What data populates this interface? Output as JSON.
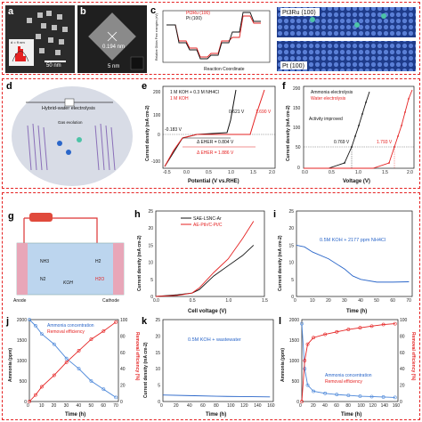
{
  "panels": {
    "a": {
      "letter": "a",
      "scale": "50 nm",
      "inset_d": "d = 9 nm"
    },
    "b": {
      "letter": "b",
      "scale": "5 nm",
      "spacing": "0.194 nm"
    },
    "c": {
      "letter": "c",
      "legend": [
        "Pt3Ru (100)",
        "Pt (100)"
      ],
      "ylabel": "Relative Gibbs Free energies (eV)",
      "xlabel": "Reaction Coordinate",
      "structures": [
        "Pt3Ru (100)",
        "Pt (100)"
      ]
    },
    "d": {
      "letter": "d",
      "title": "Hybrid-water electrolysis",
      "label_gas": "Gas evolution"
    },
    "e": {
      "letter": "e",
      "legend": [
        "1 M KOH + 0.3 M NH4Cl",
        "1 M KOH"
      ],
      "ann": [
        "0.621 V",
        "-0.183 V",
        "1.690 V",
        "Δ EHER = 0.804 V",
        "Δ EHER = 1.886 V"
      ],
      "xlabel": "Potential (V vs.RHE)",
      "ylabel": "Current density (mA cm-2)"
    },
    "f": {
      "letter": "f",
      "legend": [
        "Ammonia electrolysis",
        "Water electrolysis"
      ],
      "ann": [
        "Activity improved",
        "0.769 V",
        "1.793 V"
      ],
      "xlabel": "Voltage (V)",
      "ylabel": "Current density (mA cm-2)"
    },
    "g": {
      "letter": "g",
      "labels": [
        "NH3",
        "H2",
        "N2",
        "H2O",
        "KOH",
        "Anode",
        "Cathode"
      ]
    },
    "h": {
      "letter": "h",
      "legend": [
        "SAE-LSNC-Ar",
        "AE-PtIr/C-Pt/C"
      ],
      "xlabel": "Cell voltage (V)",
      "ylabel": "Current density (mA cm-2)"
    },
    "i": {
      "letter": "i",
      "note": "0.5M KOH + 2177 ppm NH4Cl",
      "xlabel": "Time (h)",
      "ylabel": "Current density (mA cm-2)"
    },
    "j": {
      "letter": "j",
      "legend": [
        "Ammonia concentration",
        "Removal efficiency"
      ],
      "xlabel": "Time (h)",
      "ylabel": "Ammonia (ppm)",
      "y2label": "Removal efficiency (%)"
    },
    "k": {
      "letter": "k",
      "note": "0.5M KOH + wastewater",
      "xlabel": "Time (h)",
      "ylabel": "Current density (mA cm-2)"
    },
    "l": {
      "letter": "l",
      "legend": [
        "Ammonia concentration",
        "Removal efficiency"
      ],
      "xlabel": "Time (h)",
      "ylabel": "Ammonia (ppm)",
      "y2label": "Removal efficiency (%)"
    }
  },
  "colors": {
    "red": "#e52222",
    "black": "#111111",
    "blue": "#2a66c9",
    "bluepoint": "#4a86d9"
  },
  "chart_data": [
    {
      "id": "e",
      "type": "line",
      "x_ticks": [
        "-0.5",
        "0.0",
        "0.5",
        "1.0",
        "1.5",
        "2.0"
      ],
      "y_ticks": [
        "-100",
        "0",
        "100",
        "200"
      ],
      "xlim": [
        -0.5,
        2.0
      ],
      "ylim": [
        -150,
        250
      ]
    },
    {
      "id": "f",
      "type": "line",
      "x_ticks": [
        "0.0",
        "0.5",
        "1.0",
        "1.5",
        "2.0"
      ],
      "y_ticks": [
        "0",
        "50",
        "100",
        "150",
        "200"
      ],
      "xlim": [
        0,
        2.0
      ],
      "ylim": [
        0,
        210
      ]
    },
    {
      "id": "h",
      "type": "line",
      "x_ticks": [
        "0.0",
        "0.5",
        "1.0",
        "1.5"
      ],
      "y_ticks": [
        "0",
        "5",
        "10",
        "15",
        "20",
        "25"
      ],
      "xlim": [
        0,
        1.5
      ],
      "ylim": [
        0,
        25
      ],
      "series": [
        {
          "name": "SAE-LSNC-Ar",
          "x": [
            0,
            0.3,
            0.5,
            0.6,
            0.8,
            1.0,
            1.2,
            1.35
          ],
          "y": [
            0,
            0.5,
            1,
            2,
            6,
            9,
            12,
            15
          ]
        },
        {
          "name": "AE-PtIr/C-Pt/C",
          "x": [
            0,
            0.3,
            0.5,
            0.6,
            0.8,
            1.0,
            1.2,
            1.35
          ],
          "y": [
            0,
            0.3,
            1,
            2.5,
            7,
            11,
            17,
            22
          ]
        }
      ]
    },
    {
      "id": "i",
      "type": "line",
      "x_ticks": [
        "0",
        "10",
        "20",
        "30",
        "40",
        "50",
        "60",
        "70"
      ],
      "y_ticks": [
        "0",
        "5",
        "10",
        "15",
        "20",
        "25"
      ],
      "xlim": [
        0,
        72
      ],
      "ylim": [
        0,
        25
      ],
      "x": [
        0,
        5,
        10,
        20,
        30,
        35,
        40,
        50,
        60,
        70
      ],
      "y": [
        15,
        14.5,
        13,
        11,
        8,
        6,
        5,
        4.2,
        4.2,
        4.3
      ]
    },
    {
      "id": "j",
      "type": "line",
      "x_ticks": [
        "0",
        "10",
        "20",
        "30",
        "40",
        "50",
        "60",
        "70"
      ],
      "y_ticks": [
        "0",
        "500",
        "1000",
        "1500",
        "2000"
      ],
      "y2_ticks": [
        "0",
        "20",
        "40",
        "60",
        "80",
        "100"
      ],
      "xlim": [
        0,
        72
      ],
      "ylim": [
        0,
        2000
      ],
      "series": [
        {
          "name": "Ammonia concentration",
          "x": [
            0,
            5,
            10,
            20,
            30,
            40,
            50,
            60,
            70
          ],
          "y": [
            2000,
            1850,
            1650,
            1400,
            1050,
            800,
            500,
            300,
            100
          ]
        },
        {
          "name": "Removal efficiency",
          "x": [
            0,
            5,
            10,
            20,
            30,
            40,
            50,
            60,
            70
          ],
          "y": [
            0,
            8,
            18,
            32,
            48,
            62,
            76,
            86,
            97
          ]
        }
      ]
    },
    {
      "id": "k",
      "type": "line",
      "x_ticks": [
        "0",
        "20",
        "40",
        "60",
        "80",
        "100",
        "120",
        "140",
        "160"
      ],
      "y_ticks": [
        "0",
        "5",
        "10",
        "15",
        "20",
        "25"
      ],
      "xlim": [
        0,
        165
      ],
      "ylim": [
        0,
        25
      ],
      "x": [
        0,
        40,
        80,
        120,
        160
      ],
      "y": [
        2,
        1.8,
        1.6,
        1.5,
        1.4
      ]
    },
    {
      "id": "l",
      "type": "line",
      "x_ticks": [
        "0",
        "20",
        "40",
        "60",
        "80",
        "100",
        "120",
        "140",
        "160"
      ],
      "y_ticks": [
        "0",
        "500",
        "1000",
        "1500",
        "2000"
      ],
      "y2_ticks": [
        "0",
        "20",
        "40",
        "60",
        "80",
        "100"
      ],
      "xlim": [
        0,
        165
      ],
      "ylim": [
        0,
        2000
      ],
      "series": [
        {
          "name": "Ammonia concentration",
          "x": [
            0,
            5,
            10,
            20,
            40,
            60,
            80,
            100,
            120,
            140,
            160
          ],
          "y": [
            1900,
            800,
            400,
            250,
            200,
            170,
            150,
            130,
            120,
            110,
            100
          ]
        },
        {
          "name": "Removal efficiency",
          "x": [
            0,
            5,
            10,
            20,
            40,
            60,
            80,
            100,
            120,
            140,
            160
          ],
          "y": [
            0,
            50,
            70,
            78,
            82,
            85,
            88,
            90,
            92,
            94,
            95
          ]
        }
      ]
    }
  ]
}
